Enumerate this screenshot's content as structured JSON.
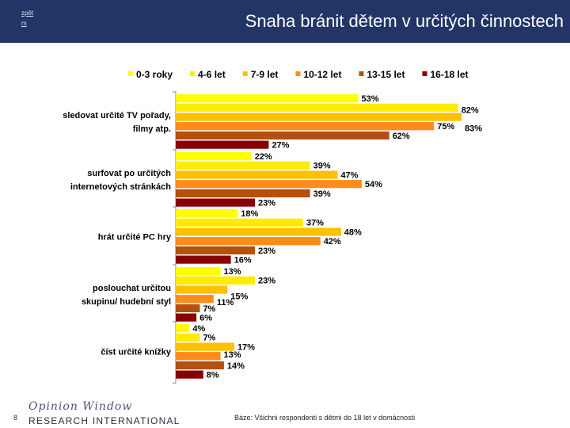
{
  "header": {
    "nav_line1": "zpět",
    "nav_line2": "m",
    "title": "Snaha bránit dětem v určitých činnostech"
  },
  "colors": {
    "header_bg": "#223566",
    "series": [
      "#ffff00",
      "#ffeb00",
      "#ffc000",
      "#ff8c1a",
      "#b45010",
      "#880000"
    ]
  },
  "chart_data": {
    "type": "bar",
    "orientation": "horizontal",
    "title": "Snaha bránit dětem v určitých činnostech",
    "categories": [
      [
        "sledovat určité TV pořady,",
        "filmy atp."
      ],
      [
        "surfovat po určitých",
        "internetových stránkách"
      ],
      [
        "hrát určité PC hry"
      ],
      [
        "poslouchat určitou",
        "skupinu/ hudební styl"
      ],
      [
        "číst určité knížky"
      ]
    ],
    "series": [
      {
        "name": "0-3 roky",
        "values": [
          53,
          22,
          18,
          13,
          4
        ]
      },
      {
        "name": "4-6 let",
        "values": [
          82,
          39,
          37,
          23,
          7
        ]
      },
      {
        "name": "7-9 let",
        "values": [
          83,
          47,
          48,
          15,
          17
        ]
      },
      {
        "name": "10-12 let",
        "values": [
          75,
          54,
          42,
          11,
          13
        ]
      },
      {
        "name": "13-15 let",
        "values": [
          62,
          39,
          23,
          7,
          14
        ]
      },
      {
        "name": "16-18 let",
        "values": [
          27,
          23,
          16,
          6,
          8
        ]
      }
    ],
    "value_suffix": "%",
    "xlim": [
      0,
      100
    ],
    "legend": "top",
    "grid": false
  },
  "footer": {
    "page_number": "8",
    "logo_line1": "Opinion Window",
    "logo_line2": "RESEARCH INTERNATIONAL",
    "base_note": "Báze: Všichni respondenti s dětmi do 18 let v domácnosti"
  }
}
